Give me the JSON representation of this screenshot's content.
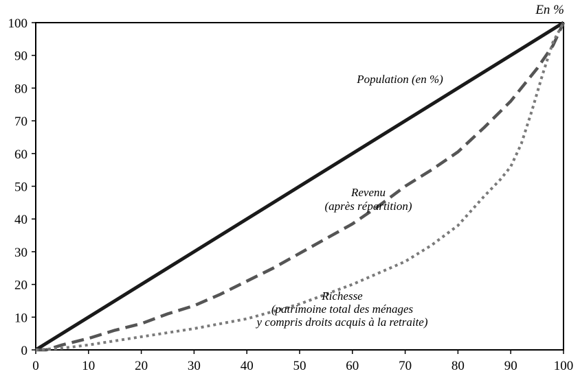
{
  "chart_data": {
    "type": "line",
    "unit_label": "En %",
    "xlim": [
      0,
      100
    ],
    "ylim": [
      0,
      100
    ],
    "xticks": [
      0,
      10,
      20,
      30,
      40,
      50,
      60,
      70,
      80,
      90,
      100
    ],
    "yticks": [
      0,
      10,
      20,
      30,
      40,
      50,
      60,
      70,
      80,
      90,
      100
    ],
    "grid": false,
    "series": [
      {
        "name": "Population (en %)",
        "label_lines": [
          "Population (en %)"
        ],
        "color": "#1a1a1a",
        "style": "solid",
        "x": [
          0,
          100
        ],
        "y": [
          0,
          100
        ]
      },
      {
        "name": "Revenu (après répartition)",
        "label_lines": [
          "Revenu",
          "(après répartition)"
        ],
        "color": "#555555",
        "style": "dashed",
        "x": [
          0,
          2,
          5,
          10,
          15,
          20,
          25,
          30,
          35,
          40,
          45,
          50,
          55,
          60,
          65,
          70,
          75,
          80,
          85,
          90,
          95,
          98,
          100
        ],
        "y": [
          0,
          0,
          1.5,
          3.5,
          6,
          8,
          11,
          13.5,
          17,
          21,
          25,
          29.5,
          34,
          38.5,
          44,
          50,
          55,
          60.5,
          68,
          76,
          86,
          93,
          100
        ]
      },
      {
        "name": "Richesse (patrimoine total des ménages y compris droits acquis à la retraite)",
        "label_lines": [
          "Richesse",
          "(patrimoine total des ménages",
          "y compris droits acquis à la retraite)"
        ],
        "color": "#7a7a7a",
        "style": "dotted",
        "x": [
          0,
          5,
          10,
          20,
          30,
          40,
          50,
          60,
          70,
          75,
          80,
          85,
          88,
          90,
          92,
          94,
          96,
          98,
          100
        ],
        "y": [
          0,
          0.5,
          1.5,
          4,
          6.5,
          9.5,
          14,
          20,
          27,
          32,
          38,
          47,
          52,
          56,
          63,
          73,
          84,
          94,
          100
        ]
      }
    ]
  }
}
